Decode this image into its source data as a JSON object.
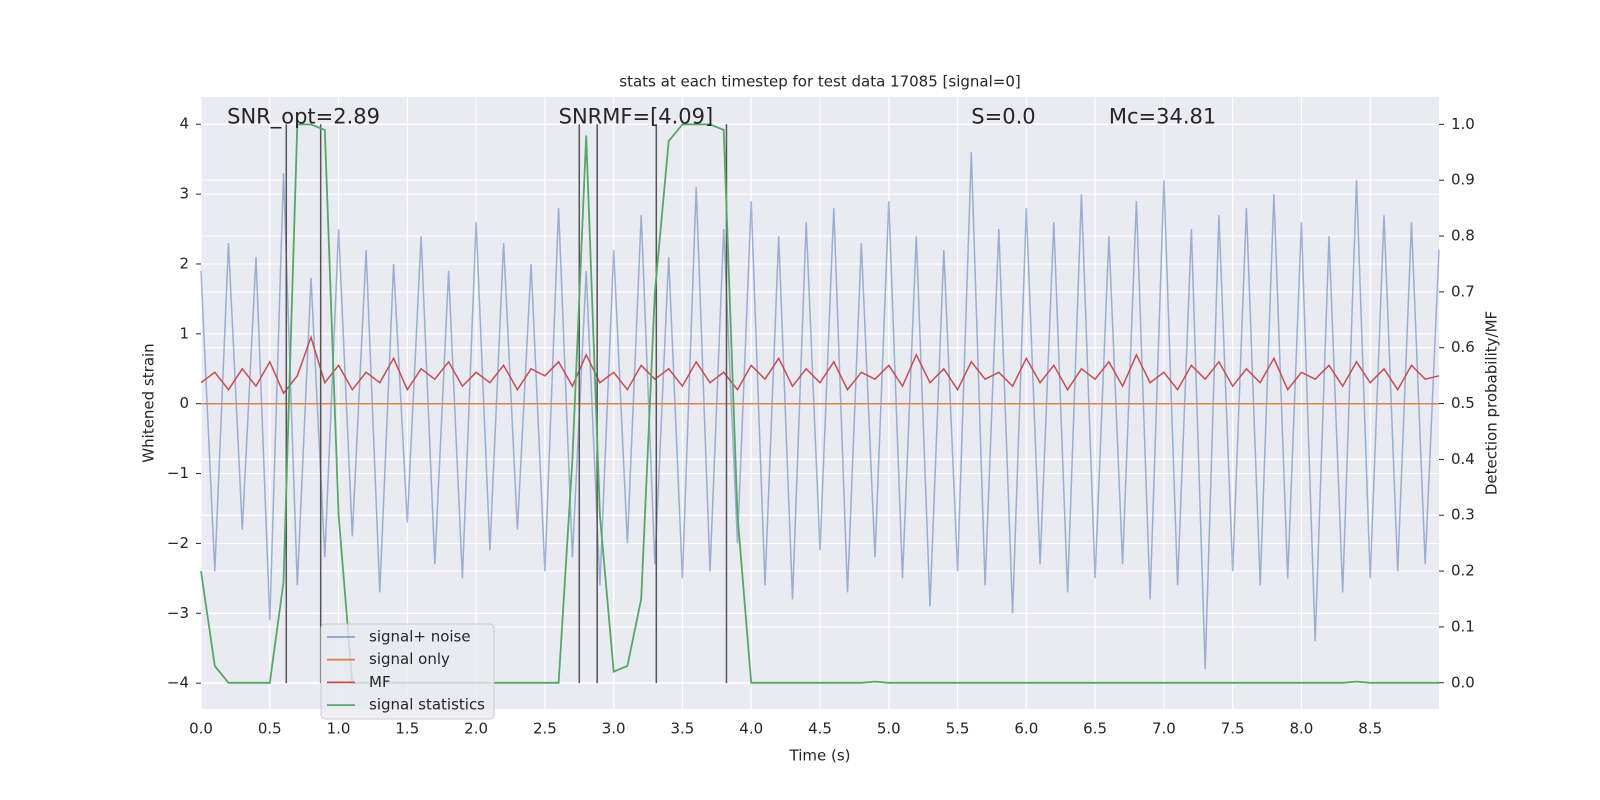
{
  "chart_data": {
    "type": "line",
    "title": "stats at each timestep for test data 17085 [signal=0]",
    "xlabel": "Time (s)",
    "ylabel": "Whitened strain",
    "y2label": "Detection probability/MF",
    "annotations": [
      {
        "text": "SNR_opt=2.89",
        "x": 0.19,
        "y": 4.1
      },
      {
        "text": "SNRMF=[4.09]",
        "x": 2.6,
        "y": 4.1
      },
      {
        "text": "S=0.0",
        "x": 5.6,
        "y": 4.1
      },
      {
        "text": "Mc=34.81",
        "x": 6.6,
        "y": 4.1
      }
    ],
    "xlim": [
      0,
      9
    ],
    "ylim": [
      -4.37,
      4.39
    ],
    "y2lim": [
      -0.047,
      1.049
    ],
    "xticks": [
      {
        "value": 0,
        "label": "0.0"
      },
      {
        "value": 0.5,
        "label": "0.5"
      },
      {
        "value": 1,
        "label": "1.0"
      },
      {
        "value": 1.5,
        "label": "1.5"
      },
      {
        "value": 2,
        "label": "2.0"
      },
      {
        "value": 2.5,
        "label": "2.5"
      },
      {
        "value": 3,
        "label": "3.0"
      },
      {
        "value": 3.5,
        "label": "3.5"
      },
      {
        "value": 4,
        "label": "4.0"
      },
      {
        "value": 4.5,
        "label": "4.5"
      },
      {
        "value": 5,
        "label": "5.0"
      },
      {
        "value": 5.5,
        "label": "5.5"
      },
      {
        "value": 6,
        "label": "6.0"
      },
      {
        "value": 6.5,
        "label": "6.5"
      },
      {
        "value": 7,
        "label": "7.0"
      },
      {
        "value": 7.5,
        "label": "7.5"
      },
      {
        "value": 8,
        "label": "8.0"
      },
      {
        "value": 8.5,
        "label": "8.5"
      }
    ],
    "yticks": [
      {
        "value": -4,
        "label": "−4"
      },
      {
        "value": -3,
        "label": "−3"
      },
      {
        "value": -2,
        "label": "−2"
      },
      {
        "value": -1,
        "label": "−1"
      },
      0,
      1,
      2,
      3,
      4
    ],
    "y2ticks": [
      {
        "value": 0,
        "label": "0.0"
      },
      {
        "value": 0.1,
        "label": "0.1"
      },
      {
        "value": 0.2,
        "label": "0.2"
      },
      {
        "value": 0.3,
        "label": "0.3"
      },
      {
        "value": 0.4,
        "label": "0.4"
      },
      {
        "value": 0.5,
        "label": "0.5"
      },
      {
        "value": 0.6,
        "label": "0.6"
      },
      {
        "value": 0.7,
        "label": "0.7"
      },
      {
        "value": 0.8,
        "label": "0.8"
      },
      {
        "value": 0.9,
        "label": "0.9"
      },
      {
        "value": 1,
        "label": "1.0"
      }
    ],
    "grid": true,
    "vlines": [
      0.62,
      0.87,
      2.75,
      2.88,
      3.31,
      3.82
    ],
    "vline_range": [
      -4,
      4
    ],
    "vline_color": "#555555",
    "x": [
      0,
      0.1,
      0.2,
      0.3,
      0.4,
      0.5,
      0.6,
      0.7,
      0.8,
      0.9,
      1,
      1.1,
      1.2,
      1.3,
      1.4,
      1.5,
      1.6,
      1.7,
      1.8,
      1.9,
      2,
      2.1,
      2.2,
      2.3,
      2.4,
      2.5,
      2.6,
      2.7,
      2.8,
      2.9,
      3,
      3.1,
      3.2,
      3.3,
      3.4,
      3.5,
      3.6,
      3.7,
      3.8,
      3.9,
      4,
      4.1,
      4.2,
      4.3,
      4.4,
      4.5,
      4.6,
      4.7,
      4.8,
      4.9,
      5,
      5.1,
      5.2,
      5.3,
      5.4,
      5.5,
      5.6,
      5.7,
      5.8,
      5.9,
      6,
      6.1,
      6.2,
      6.3,
      6.4,
      6.5,
      6.6,
      6.7,
      6.8,
      6.9,
      7,
      7.1,
      7.2,
      7.3,
      7.4,
      7.5,
      7.6,
      7.7,
      7.8,
      7.9,
      8,
      8.1,
      8.2,
      8.3,
      8.4,
      8.5,
      8.6,
      8.7,
      8.8,
      8.9,
      9
    ],
    "series": [
      {
        "name": "signal+ noise",
        "color": "#4c72b0",
        "values": [
          1.9,
          -2.4,
          2.3,
          -1.8,
          2.1,
          -3.1,
          3.3,
          -2.6,
          1.8,
          -2.2,
          2.5,
          -1.9,
          2.2,
          -2.7,
          2.0,
          -1.7,
          2.4,
          -2.3,
          1.9,
          -2.5,
          2.6,
          -2.1,
          2.3,
          -1.8,
          2.0,
          -2.4,
          2.8,
          -2.2,
          1.9,
          -2.6,
          2.2,
          -2.0,
          2.7,
          -2.3,
          2.1,
          -2.5,
          3.1,
          -2.4,
          2.5,
          -2.0,
          2.9,
          -2.6,
          2.4,
          -2.8,
          2.6,
          -2.1,
          2.8,
          -2.7,
          2.3,
          -2.2,
          2.9,
          -2.5,
          2.4,
          -2.9,
          2.2,
          -2.4,
          3.6,
          -2.6,
          2.5,
          -3.0,
          2.8,
          -2.3,
          2.6,
          -2.7,
          3.0,
          -2.5,
          2.4,
          -2.3,
          2.9,
          -2.8,
          3.2,
          -2.6,
          2.5,
          -3.8,
          2.7,
          -2.4,
          2.8,
          -2.6,
          3.0,
          -2.5,
          2.6,
          -3.4,
          2.4,
          -2.7,
          3.2,
          -2.5,
          2.7,
          -2.4,
          2.6,
          -2.3,
          2.2
        ]
      },
      {
        "name": "signal only",
        "color": "#dd8452",
        "values": [
          0,
          0,
          0,
          0,
          0,
          0,
          0,
          0,
          0,
          0,
          0,
          0,
          0,
          0,
          0,
          0,
          0,
          0,
          0,
          0,
          0,
          0,
          0,
          0,
          0,
          0,
          0,
          0,
          0,
          0,
          0,
          0,
          0,
          0,
          0,
          0,
          0,
          0,
          0,
          0,
          0,
          0,
          0,
          0,
          0,
          0,
          0,
          0,
          0,
          0,
          0,
          0,
          0,
          0,
          0,
          0,
          0,
          0,
          0,
          0,
          0,
          0,
          0,
          0,
          0,
          0,
          0,
          0,
          0,
          0,
          0,
          0,
          0,
          0,
          0,
          0,
          0,
          0,
          0,
          0,
          0,
          0,
          0,
          0,
          0,
          0,
          0,
          0,
          0,
          0,
          0
        ]
      },
      {
        "name": "MF",
        "color": "#c44e52",
        "values": [
          0.3,
          0.45,
          0.2,
          0.5,
          0.25,
          0.6,
          0.15,
          0.4,
          0.95,
          0.3,
          0.55,
          0.2,
          0.45,
          0.3,
          0.65,
          0.2,
          0.5,
          0.35,
          0.6,
          0.25,
          0.45,
          0.3,
          0.55,
          0.2,
          0.5,
          0.4,
          0.6,
          0.25,
          0.7,
          0.3,
          0.45,
          0.2,
          0.55,
          0.35,
          0.5,
          0.25,
          0.6,
          0.3,
          0.45,
          0.2,
          0.55,
          0.35,
          0.65,
          0.25,
          0.5,
          0.3,
          0.6,
          0.2,
          0.45,
          0.35,
          0.55,
          0.25,
          0.7,
          0.3,
          0.5,
          0.2,
          0.6,
          0.35,
          0.45,
          0.25,
          0.65,
          0.3,
          0.55,
          0.2,
          0.5,
          0.35,
          0.6,
          0.25,
          0.7,
          0.3,
          0.45,
          0.2,
          0.55,
          0.35,
          0.6,
          0.25,
          0.5,
          0.3,
          0.65,
          0.2,
          0.45,
          0.35,
          0.55,
          0.25,
          0.6,
          0.3,
          0.5,
          0.2,
          0.55,
          0.35,
          0.4
        ]
      },
      {
        "name": "signal statistics",
        "color": "#55a868",
        "axis": "y2",
        "values": [
          0.2,
          0.03,
          0,
          0,
          0,
          0,
          0.18,
          1.0,
          1.0,
          0.99,
          0.3,
          0,
          0,
          0,
          0,
          0,
          0,
          0,
          0,
          0,
          0,
          0,
          0,
          0,
          0,
          0,
          0,
          0.4,
          0.98,
          0.3,
          0.02,
          0.03,
          0.15,
          0.7,
          0.97,
          1.0,
          1.0,
          1.0,
          0.99,
          0.3,
          0,
          0,
          0,
          0,
          0,
          0,
          0,
          0,
          0,
          0.002,
          0,
          0,
          0,
          0,
          0,
          0,
          0,
          0,
          0,
          0,
          0,
          0,
          0,
          0,
          0,
          0,
          0,
          0,
          0,
          0,
          0,
          0,
          0,
          0,
          0,
          0,
          0,
          0,
          0,
          0,
          0,
          0,
          0,
          0,
          0.002,
          0,
          0,
          0,
          0,
          0,
          0
        ]
      }
    ]
  }
}
